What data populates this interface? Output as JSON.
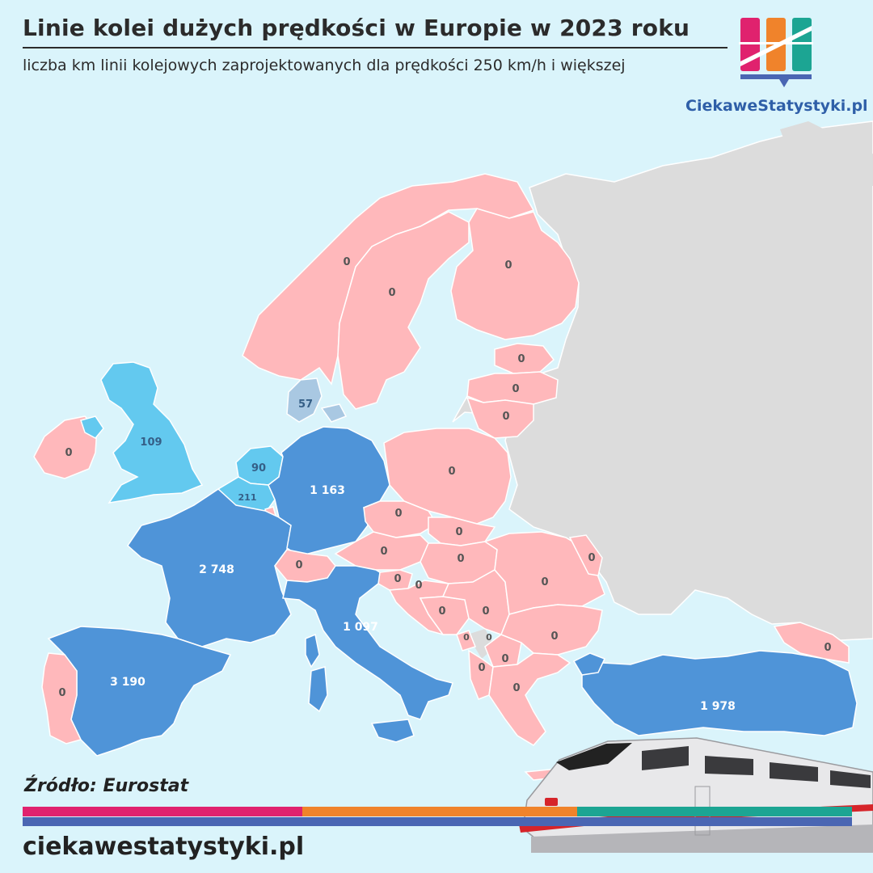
{
  "header": {
    "title": "Linie kolei dużych prędkości w Europie w 2023 roku",
    "subtitle": "liczba km linii kolejowych zaprojektowanych dla prędkości 250 km/h i większej"
  },
  "brand": {
    "name": "CiekaweStatystyki.pl",
    "logo_colors": [
      "#e0226e",
      "#f0832b",
      "#1ca593",
      "#4a66b3"
    ]
  },
  "footer": {
    "source": "Źródło: Eurostat",
    "url": "ciekawestatystyki.pl",
    "stripe_colors": [
      "#e0226e",
      "#f0832b",
      "#1ca593",
      "#4a66b3"
    ]
  },
  "legend_colors": {
    "zero": "#ffb8bb",
    "low": "#63c9ef",
    "very_low": "#a9c8e2",
    "high": "#4f94d8",
    "no_data": "#dcdcdc",
    "sea": "#daf4fb"
  },
  "map_data": {
    "unit": "km",
    "countries": [
      {
        "name": "Norway",
        "value": "0",
        "tier": "zero"
      },
      {
        "name": "Sweden",
        "value": "0",
        "tier": "zero"
      },
      {
        "name": "Finland",
        "value": "0",
        "tier": "zero"
      },
      {
        "name": "Estonia",
        "value": "0",
        "tier": "zero"
      },
      {
        "name": "Latvia",
        "value": "0",
        "tier": "zero"
      },
      {
        "name": "Lithuania",
        "value": "0",
        "tier": "zero"
      },
      {
        "name": "Denmark",
        "value": "57",
        "tier": "very_low"
      },
      {
        "name": "Ireland",
        "value": "0",
        "tier": "zero"
      },
      {
        "name": "United Kingdom",
        "value": "109",
        "tier": "low"
      },
      {
        "name": "Netherlands",
        "value": "90",
        "tier": "low"
      },
      {
        "name": "Belgium",
        "value": "211",
        "tier": "low"
      },
      {
        "name": "Germany",
        "value": "1 163",
        "tier": "high"
      },
      {
        "name": "Poland",
        "value": "0",
        "tier": "zero"
      },
      {
        "name": "France",
        "value": "2 748",
        "tier": "high"
      },
      {
        "name": "Switzerland",
        "value": "0",
        "tier": "zero"
      },
      {
        "name": "Czechia",
        "value": "0",
        "tier": "zero"
      },
      {
        "name": "Slovakia",
        "value": "0",
        "tier": "zero"
      },
      {
        "name": "Austria",
        "value": "0",
        "tier": "zero"
      },
      {
        "name": "Hungary",
        "value": "0",
        "tier": "zero"
      },
      {
        "name": "Slovenia",
        "value": "0",
        "tier": "zero"
      },
      {
        "name": "Croatia",
        "value": "0",
        "tier": "zero"
      },
      {
        "name": "Romania",
        "value": "0",
        "tier": "zero"
      },
      {
        "name": "Moldova",
        "value": "0",
        "tier": "zero"
      },
      {
        "name": "Bosnia and Herzegovina",
        "value": "0",
        "tier": "zero"
      },
      {
        "name": "Serbia",
        "value": "0",
        "tier": "zero"
      },
      {
        "name": "Montenegro",
        "value": "0",
        "tier": "zero"
      },
      {
        "name": "Kosovo",
        "value": "0",
        "tier": "zero"
      },
      {
        "name": "North Macedonia",
        "value": "0",
        "tier": "zero"
      },
      {
        "name": "Albania",
        "value": "0",
        "tier": "zero"
      },
      {
        "name": "Bulgaria",
        "value": "0",
        "tier": "zero"
      },
      {
        "name": "Greece",
        "value": "0",
        "tier": "zero"
      },
      {
        "name": "Italy",
        "value": "1 097",
        "tier": "high"
      },
      {
        "name": "Spain",
        "value": "3 190",
        "tier": "high"
      },
      {
        "name": "Portugal",
        "value": "0",
        "tier": "zero"
      },
      {
        "name": "Turkey",
        "value": "1 978",
        "tier": "high"
      },
      {
        "name": "Georgia",
        "value": "0",
        "tier": "zero"
      }
    ]
  }
}
